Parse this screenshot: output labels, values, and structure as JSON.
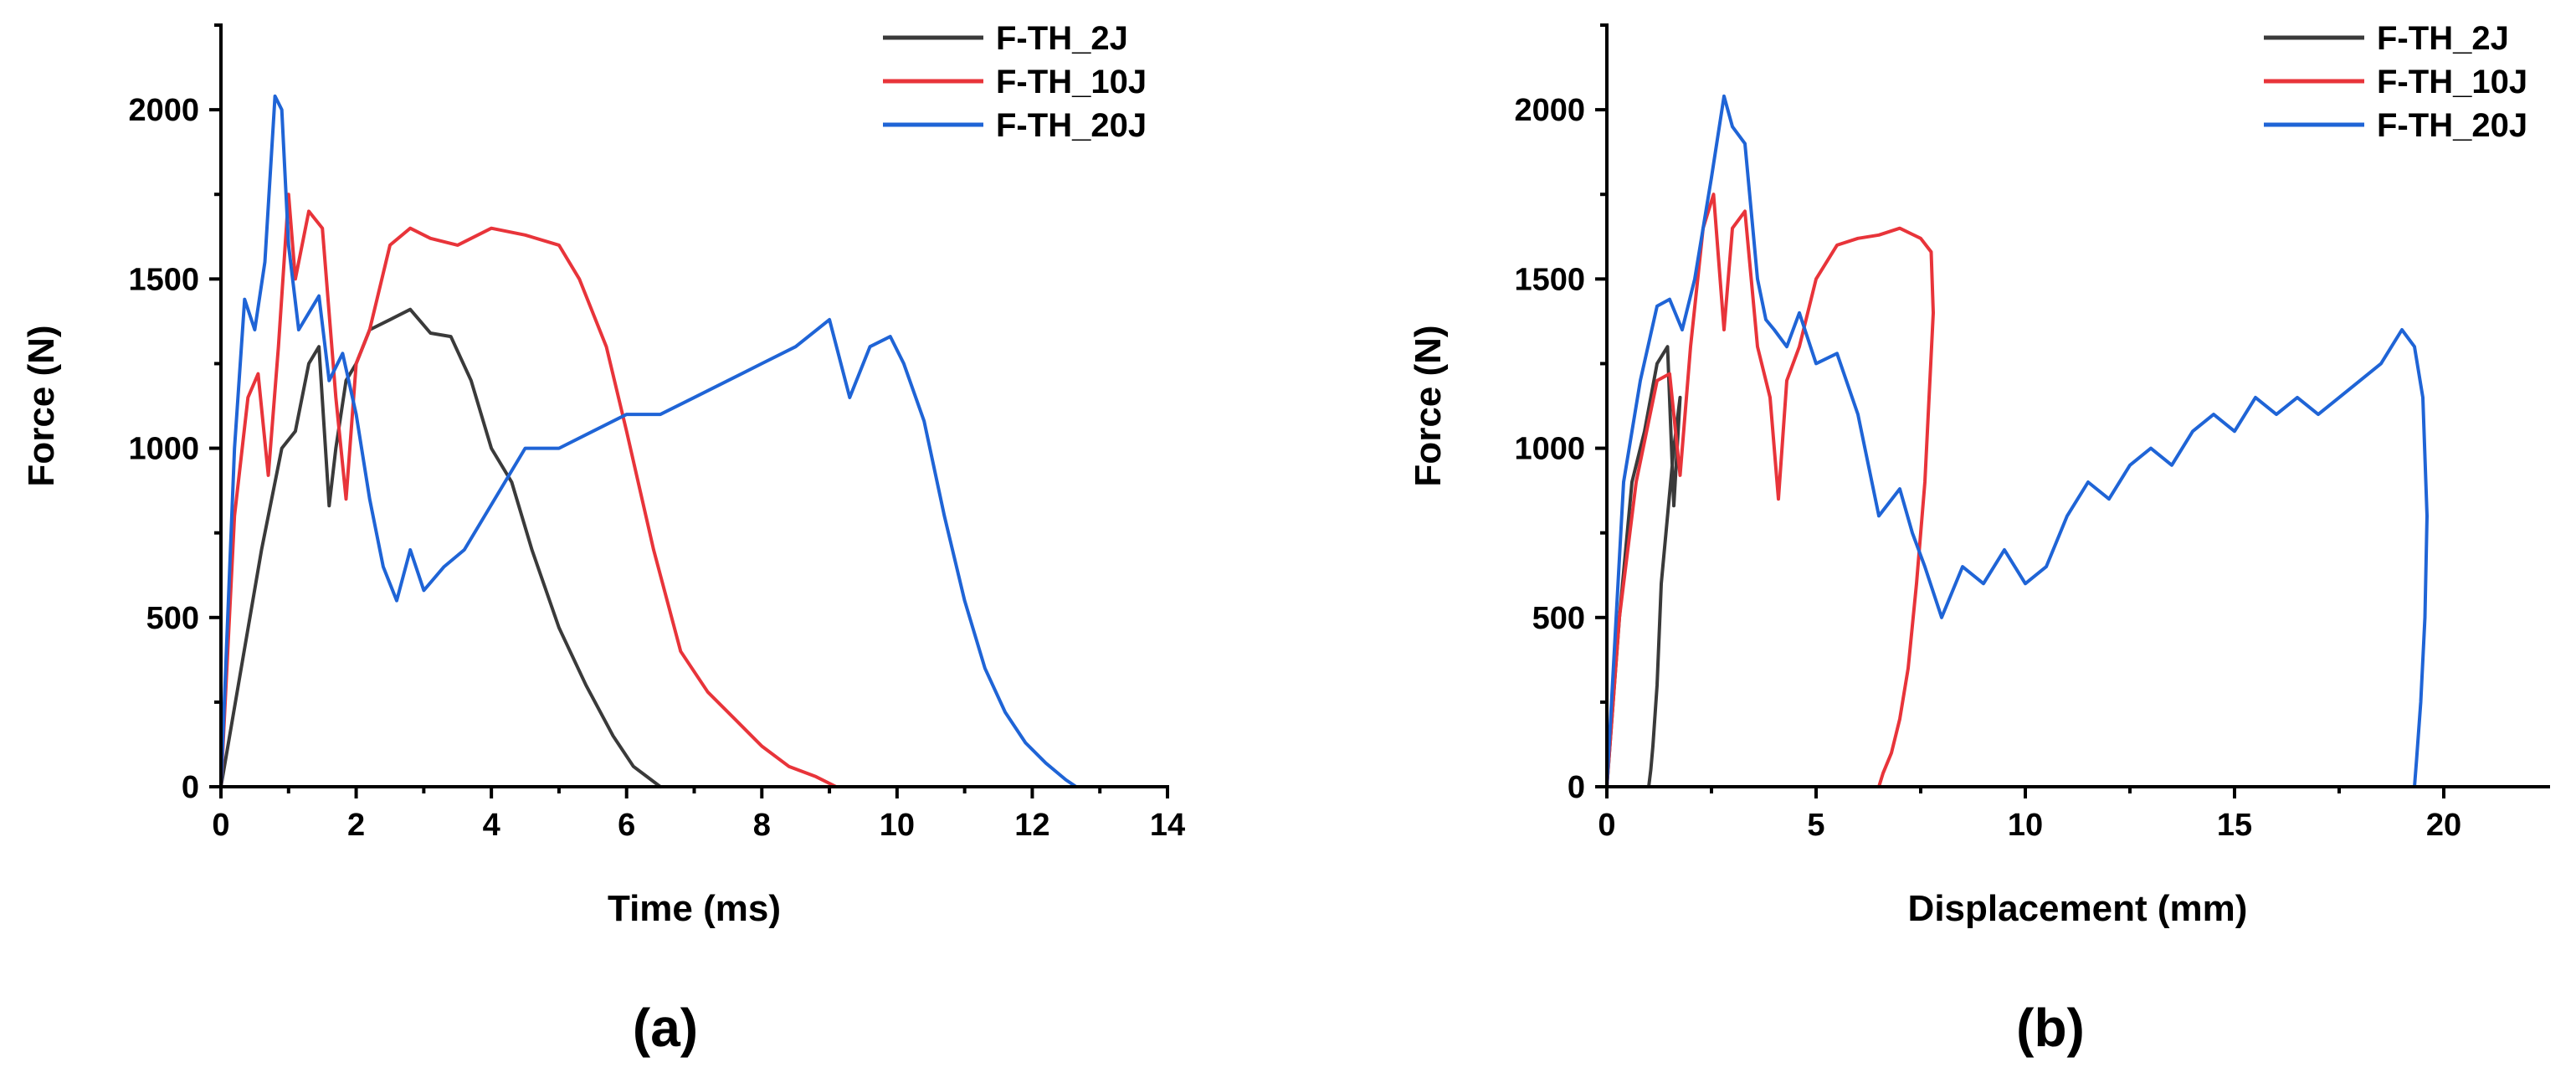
{
  "chart_data": [
    {
      "panel_label": "(a)",
      "type": "line",
      "xlabel": "Time (ms)",
      "ylabel": "Force (N)",
      "xlim": [
        0,
        14
      ],
      "ylim": [
        0,
        2250
      ],
      "xticks": [
        0,
        2,
        4,
        6,
        8,
        10,
        12,
        14
      ],
      "yticks": [
        0,
        500,
        1000,
        1500,
        2000
      ],
      "legend_position": "top-right",
      "series": [
        {
          "name": "F-TH_2J",
          "color": "#3a3a3a",
          "x": [
            0,
            0.3,
            0.6,
            0.9,
            1.1,
            1.3,
            1.45,
            1.6,
            1.7,
            1.85,
            2.0,
            2.2,
            2.5,
            2.8,
            3.1,
            3.4,
            3.7,
            4.0,
            4.3,
            4.6,
            5.0,
            5.4,
            5.8,
            6.1,
            6.3,
            6.5
          ],
          "y": [
            0,
            350,
            700,
            1000,
            1050,
            1250,
            1300,
            830,
            1000,
            1200,
            1250,
            1350,
            1380,
            1410,
            1340,
            1330,
            1200,
            1000,
            900,
            700,
            470,
            300,
            150,
            60,
            30,
            0
          ]
        },
        {
          "name": "F-TH_10J",
          "color": "#e8343a",
          "x": [
            0,
            0.2,
            0.4,
            0.55,
            0.7,
            0.85,
            1.0,
            1.1,
            1.3,
            1.5,
            1.7,
            1.85,
            2.0,
            2.2,
            2.5,
            2.8,
            3.1,
            3.5,
            4.0,
            4.5,
            5.0,
            5.3,
            5.7,
            6.0,
            6.4,
            6.8,
            7.2,
            7.6,
            8.0,
            8.4,
            8.8,
            9.1
          ],
          "y": [
            0,
            800,
            1150,
            1220,
            920,
            1300,
            1750,
            1500,
            1700,
            1650,
            1150,
            850,
            1250,
            1350,
            1600,
            1650,
            1620,
            1600,
            1650,
            1630,
            1600,
            1500,
            1300,
            1050,
            700,
            400,
            280,
            200,
            120,
            60,
            30,
            0
          ]
        },
        {
          "name": "F-TH_20J",
          "color": "#1f64d6",
          "x": [
            0,
            0.2,
            0.35,
            0.5,
            0.65,
            0.8,
            0.9,
            1.0,
            1.15,
            1.3,
            1.45,
            1.6,
            1.8,
            2.0,
            2.2,
            2.4,
            2.6,
            2.8,
            3.0,
            3.3,
            3.6,
            3.9,
            4.2,
            4.5,
            5.0,
            5.5,
            6.0,
            6.5,
            7.0,
            7.5,
            8.0,
            8.5,
            9.0,
            9.3,
            9.6,
            9.9,
            10.1,
            10.4,
            10.7,
            11.0,
            11.3,
            11.6,
            11.9,
            12.2,
            12.5,
            12.65
          ],
          "y": [
            0,
            1000,
            1440,
            1350,
            1550,
            2040,
            2000,
            1600,
            1350,
            1400,
            1450,
            1200,
            1280,
            1100,
            850,
            650,
            550,
            700,
            580,
            650,
            700,
            800,
            900,
            1000,
            1000,
            1050,
            1100,
            1100,
            1150,
            1200,
            1250,
            1300,
            1380,
            1150,
            1300,
            1330,
            1250,
            1080,
            800,
            550,
            350,
            220,
            130,
            70,
            20,
            0
          ]
        }
      ]
    },
    {
      "panel_label": "(b)",
      "type": "line",
      "xlabel": "Displacement (mm)",
      "ylabel": "Force (N)",
      "xlim": [
        0,
        22.5
      ],
      "ylim": [
        0,
        2250
      ],
      "xticks": [
        0,
        5,
        10,
        15,
        20
      ],
      "yticks": [
        0,
        500,
        1000,
        1500,
        2000
      ],
      "legend_position": "top-right",
      "series": [
        {
          "name": "F-TH_2J",
          "color": "#3a3a3a",
          "x": [
            0,
            0.3,
            0.6,
            0.9,
            1.2,
            1.45,
            1.6,
            1.75,
            1.6,
            1.3,
            1.2,
            1.1,
            1.05,
            1.0
          ],
          "y": [
            0,
            500,
            900,
            1050,
            1250,
            1300,
            830,
            1150,
            1000,
            600,
            300,
            120,
            50,
            0
          ]
        },
        {
          "name": "F-TH_10J",
          "color": "#e8343a",
          "x": [
            0,
            0.3,
            0.7,
            1.2,
            1.5,
            1.75,
            2.0,
            2.3,
            2.55,
            2.8,
            3.0,
            3.3,
            3.6,
            3.9,
            4.1,
            4.3,
            4.6,
            5.0,
            5.5,
            6.0,
            6.5,
            7.0,
            7.5,
            7.75,
            7.8,
            7.6,
            7.4,
            7.2,
            7.0,
            6.8,
            6.6,
            6.5
          ],
          "y": [
            0,
            500,
            900,
            1200,
            1220,
            920,
            1300,
            1650,
            1750,
            1350,
            1650,
            1700,
            1300,
            1150,
            850,
            1200,
            1300,
            1500,
            1600,
            1620,
            1630,
            1650,
            1620,
            1580,
            1400,
            900,
            600,
            350,
            200,
            100,
            40,
            0
          ]
        },
        {
          "name": "F-TH_20J",
          "color": "#1f64d6",
          "x": [
            0,
            0.4,
            0.8,
            1.2,
            1.5,
            1.8,
            2.1,
            2.5,
            2.8,
            3.0,
            3.3,
            3.6,
            3.8,
            4.0,
            4.3,
            4.6,
            5.0,
            5.5,
            6.0,
            6.5,
            7.0,
            7.3,
            7.6,
            8.0,
            8.5,
            9.0,
            9.5,
            10.0,
            10.5,
            11.0,
            11.5,
            12.0,
            12.5,
            13.0,
            13.5,
            14.0,
            14.5,
            15.0,
            15.5,
            16.0,
            16.5,
            17.0,
            17.5,
            18.0,
            18.5,
            19.0,
            19.3,
            19.5,
            19.6,
            19.55,
            19.45,
            19.35,
            19.3
          ],
          "y": [
            0,
            900,
            1200,
            1420,
            1440,
            1350,
            1500,
            1800,
            2040,
            1950,
            1900,
            1500,
            1380,
            1350,
            1300,
            1400,
            1250,
            1280,
            1100,
            800,
            880,
            750,
            650,
            500,
            650,
            600,
            700,
            600,
            650,
            800,
            900,
            850,
            950,
            1000,
            950,
            1050,
            1100,
            1050,
            1150,
            1100,
            1150,
            1100,
            1150,
            1200,
            1250,
            1350,
            1300,
            1150,
            800,
            500,
            250,
            80,
            0
          ]
        }
      ]
    }
  ]
}
